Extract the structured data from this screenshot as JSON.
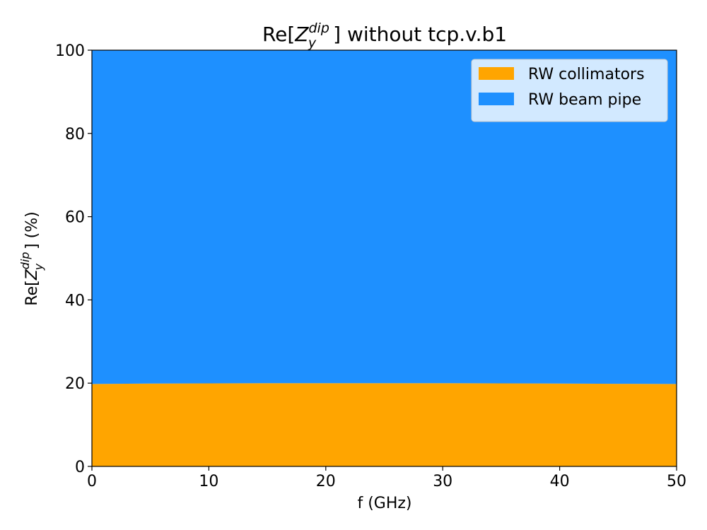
{
  "chart_data": {
    "type": "area",
    "stacked": true,
    "normalized_percent": true,
    "title": {
      "prefix": "Re[",
      "symbol": "Z",
      "superscript": "dip",
      "subscript": "y",
      "suffix": "] without tcp.v.b1"
    },
    "xlabel": "f (GHz)",
    "ylabel": {
      "prefix": "Re[",
      "symbol": "Z",
      "superscript": "dip",
      "subscript": "y",
      "suffix": "] (%)"
    },
    "xlim": [
      0,
      50
    ],
    "ylim": [
      0,
      100
    ],
    "xticks": [
      0,
      10,
      20,
      30,
      40,
      50
    ],
    "yticks": [
      0,
      20,
      40,
      60,
      80,
      100
    ],
    "grid": false,
    "legend_position": "top-right",
    "x": [
      0,
      5,
      10,
      15,
      20,
      25,
      30,
      35,
      40,
      45,
      50
    ],
    "series": [
      {
        "name": "RW collimators",
        "color": "#FFA500",
        "values": [
          19.8,
          19.9,
          19.95,
          20.0,
          20.0,
          20.0,
          20.0,
          19.95,
          19.9,
          19.85,
          19.8
        ]
      },
      {
        "name": "RW beam pipe",
        "color": "#1E90FF",
        "values": [
          80.2,
          80.1,
          80.05,
          80.0,
          80.0,
          80.0,
          80.0,
          80.05,
          80.1,
          80.15,
          80.2
        ]
      }
    ]
  }
}
